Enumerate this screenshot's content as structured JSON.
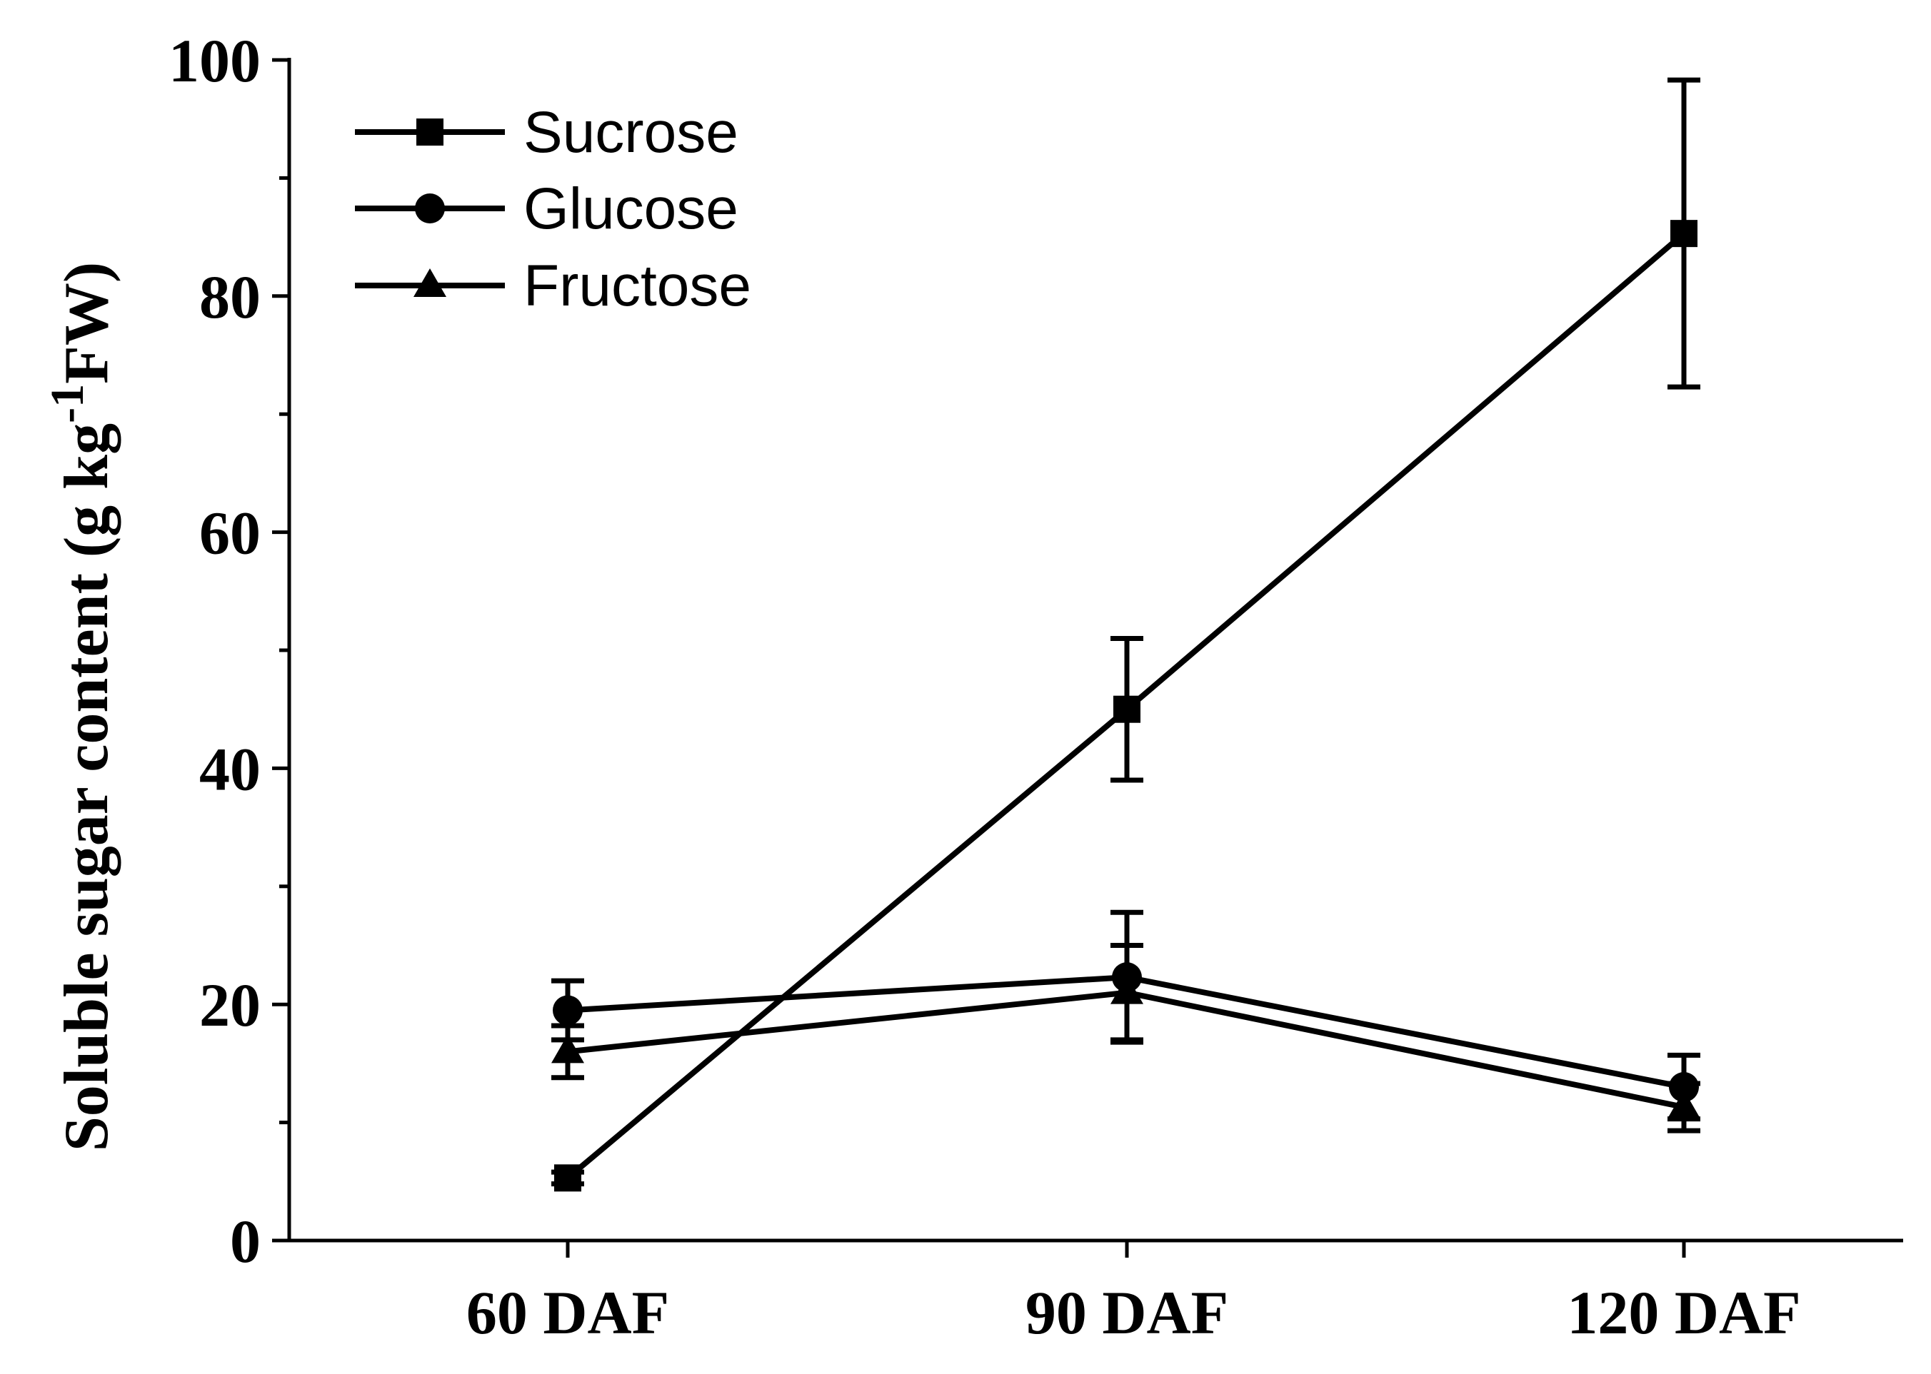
{
  "chart_data": {
    "type": "line",
    "title": "",
    "xlabel": "",
    "ylabel": "Soluble sugar content (g kg",
    "ylabel_superscript": "-1",
    "ylabel_suffix": "FW)",
    "categories": [
      "60 DAF",
      "90 DAF",
      "120 DAF"
    ],
    "ylim": [
      0,
      100
    ],
    "yticks": [
      0,
      20,
      40,
      60,
      80,
      100
    ],
    "yticks_minor": [
      10,
      30,
      50,
      70,
      90
    ],
    "grid": false,
    "legend_position": "top-left",
    "series": [
      {
        "name": "Sucrose",
        "marker": "square",
        "values": [
          5.3,
          45.0,
          85.3
        ],
        "errors": [
          0.5,
          6.0,
          13.0
        ]
      },
      {
        "name": "Glucose",
        "marker": "circle",
        "values": [
          19.5,
          22.3,
          13.0
        ],
        "errors": [
          2.5,
          5.5,
          2.7
        ]
      },
      {
        "name": "Fructose",
        "marker": "triangle",
        "values": [
          16.0,
          21.0,
          11.3
        ],
        "errors": [
          2.2,
          4.0,
          2.0
        ]
      }
    ],
    "color": "#000000"
  }
}
